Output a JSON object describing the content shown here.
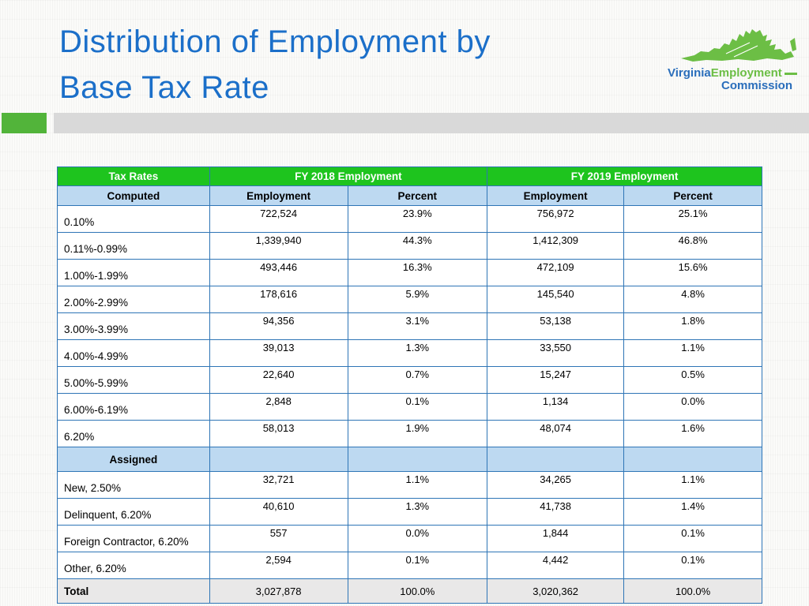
{
  "slide": {
    "title_line1": "Distribution of Employment by",
    "title_line2": "Base Tax Rate"
  },
  "logo": {
    "word1": "Virginia",
    "word2": "Employment",
    "word3": "Commission"
  },
  "colors": {
    "title_blue": "#1B6FC9",
    "header_green": "#1EC41E",
    "subheader_blue": "#BDD9F1",
    "border_blue": "#2E75B6",
    "total_gray": "#E9E8E8",
    "accent_green": "#52B43A",
    "bar_gray": "#D9D9D9",
    "logo_green": "#6CBE45",
    "logo_blue": "#2A6EBB"
  },
  "table": {
    "header": {
      "col1": "Tax Rates",
      "col2": "FY 2018 Employment",
      "col3": "FY 2019 Employment"
    },
    "subheader": {
      "col1": "Computed",
      "col2": "Employment",
      "col3": "Percent",
      "col4": "Employment",
      "col5": "Percent"
    },
    "rows": [
      {
        "type": "data",
        "label": "0.10%",
        "e18": "722,524",
        "p18": "23.9%",
        "e19": "756,972",
        "p19": "25.1%"
      },
      {
        "type": "data",
        "label": "0.11%-0.99%",
        "e18": "1,339,940",
        "p18": "44.3%",
        "e19": "1,412,309",
        "p19": "46.8%"
      },
      {
        "type": "data",
        "label": "1.00%-1.99%",
        "e18": "493,446",
        "p18": "16.3%",
        "e19": "472,109",
        "p19": "15.6%"
      },
      {
        "type": "data",
        "label": "2.00%-2.99%",
        "e18": "178,616",
        "p18": "5.9%",
        "e19": "145,540",
        "p19": "4.8%"
      },
      {
        "type": "data",
        "label": "3.00%-3.99%",
        "e18": "94,356",
        "p18": "3.1%",
        "e19": "53,138",
        "p19": "1.8%"
      },
      {
        "type": "data",
        "label": "4.00%-4.99%",
        "e18": "39,013",
        "p18": "1.3%",
        "e19": "33,550",
        "p19": "1.1%"
      },
      {
        "type": "data",
        "label": "5.00%-5.99%",
        "e18": "22,640",
        "p18": "0.7%",
        "e19": "15,247",
        "p19": "0.5%"
      },
      {
        "type": "data",
        "label": "6.00%-6.19%",
        "e18": "2,848",
        "p18": "0.1%",
        "e19": "1,134",
        "p19": "0.0%"
      },
      {
        "type": "data",
        "label": "6.20%",
        "e18": "58,013",
        "p18": "1.9%",
        "e19": "48,074",
        "p19": "1.6%"
      },
      {
        "type": "section",
        "label": "Assigned",
        "e18": "",
        "p18": "",
        "e19": "",
        "p19": ""
      },
      {
        "type": "data",
        "label": "New, 2.50%",
        "e18": "32,721",
        "p18": "1.1%",
        "e19": "34,265",
        "p19": "1.1%"
      },
      {
        "type": "data",
        "label": "Delinquent, 6.20%",
        "e18": "40,610",
        "p18": "1.3%",
        "e19": "41,738",
        "p19": "1.4%"
      },
      {
        "type": "data",
        "label": "Foreign Contractor, 6.20%",
        "e18": "557",
        "p18": "0.0%",
        "e19": "1,844",
        "p19": "0.1%"
      },
      {
        "type": "data",
        "label": "Other, 6.20%",
        "e18": "2,594",
        "p18": "0.1%",
        "e19": "4,442",
        "p19": "0.1%"
      },
      {
        "type": "total",
        "label": "Total",
        "e18": "3,027,878",
        "p18": "100.0%",
        "e19": "3,020,362",
        "p19": "100.0%"
      }
    ]
  }
}
